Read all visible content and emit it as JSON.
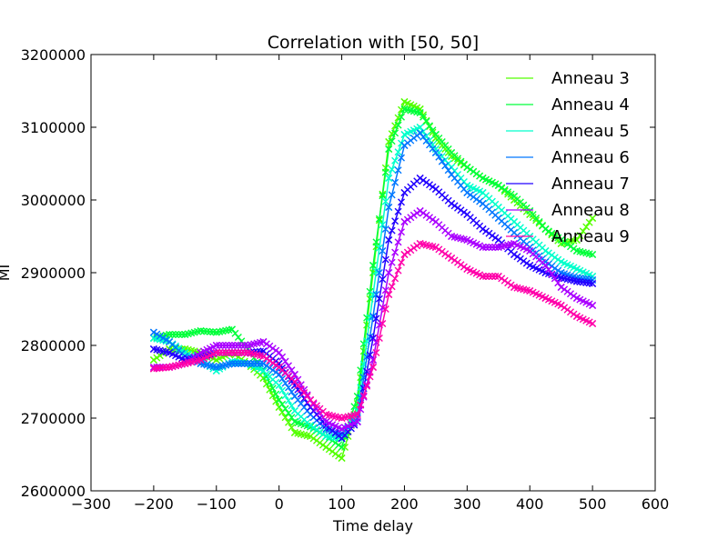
{
  "chart_data": {
    "type": "line",
    "title": "Correlation with [50, 50]",
    "xlabel": "Time delay",
    "ylabel": "MI",
    "xlim": [
      -300,
      600
    ],
    "ylim": [
      2600000,
      3200000
    ],
    "x_ticks": [
      -300,
      -200,
      -100,
      0,
      100,
      200,
      300,
      400,
      500,
      600
    ],
    "y_ticks": [
      2600000,
      2700000,
      2800000,
      2900000,
      3000000,
      3100000,
      3200000
    ],
    "x_tick_labels": [
      "−300",
      "−200",
      "−100",
      "0",
      "100",
      "200",
      "300",
      "400",
      "500",
      "600"
    ],
    "y_tick_labels": [
      "2600000",
      "2700000",
      "2800000",
      "2900000",
      "3000000",
      "3100000",
      "3200000"
    ],
    "marker": "x",
    "grid": false,
    "legend_position": "top-right",
    "x": [
      -200,
      -175,
      -150,
      -125,
      -100,
      -75,
      -50,
      -25,
      0,
      25,
      50,
      75,
      100,
      125,
      150,
      175,
      200,
      225,
      250,
      275,
      300,
      325,
      350,
      375,
      400,
      425,
      450,
      475,
      500
    ],
    "series": [
      {
        "name": "Anneau 3",
        "color": "#55ff00",
        "values": [
          2780000,
          2795000,
          2795000,
          2790000,
          2780000,
          2790000,
          2775000,
          2755000,
          2715000,
          2680000,
          2675000,
          2660000,
          2645000,
          2720000,
          2900000,
          3080000,
          3135000,
          3125000,
          3085000,
          3060000,
          3045000,
          3030000,
          3020000,
          3000000,
          2980000,
          2960000,
          2940000,
          2945000,
          2975000
        ]
      },
      {
        "name": "Anneau 4",
        "color": "#00ff3a",
        "values": [
          2810000,
          2815000,
          2815000,
          2820000,
          2818000,
          2822000,
          2795000,
          2765000,
          2725000,
          2695000,
          2688000,
          2675000,
          2660000,
          2730000,
          2910000,
          3070000,
          3125000,
          3120000,
          3090000,
          3065000,
          3045000,
          3030000,
          3020000,
          3005000,
          2985000,
          2960000,
          2945000,
          2930000,
          2925000
        ]
      },
      {
        "name": "Anneau 5",
        "color": "#00ffcc",
        "values": [
          2810000,
          2805000,
          2790000,
          2780000,
          2765000,
          2778000,
          2775000,
          2765000,
          2745000,
          2710000,
          2690000,
          2675000,
          2672000,
          2710000,
          2870000,
          3030000,
          3090000,
          3100000,
          3070000,
          3045000,
          3020000,
          3010000,
          2990000,
          2970000,
          2950000,
          2930000,
          2915000,
          2905000,
          2895000
        ]
      },
      {
        "name": "Anneau 6",
        "color": "#0077ff",
        "values": [
          2818000,
          2805000,
          2785000,
          2775000,
          2770000,
          2775000,
          2775000,
          2775000,
          2760000,
          2730000,
          2705000,
          2685000,
          2678000,
          2700000,
          2840000,
          2990000,
          3075000,
          3092000,
          3065000,
          3035000,
          3010000,
          2995000,
          2975000,
          2955000,
          2935000,
          2915000,
          2900000,
          2893000,
          2890000
        ]
      },
      {
        "name": "Anneau 7",
        "color": "#2200ff",
        "values": [
          2795000,
          2790000,
          2780000,
          2785000,
          2790000,
          2790000,
          2790000,
          2792000,
          2775000,
          2745000,
          2715000,
          2690000,
          2672000,
          2695000,
          2810000,
          2945000,
          3010000,
          3030000,
          3015000,
          2995000,
          2980000,
          2960000,
          2945000,
          2925000,
          2910000,
          2900000,
          2893000,
          2888000,
          2885000
        ]
      },
      {
        "name": "Anneau 8",
        "color": "#aa00ff",
        "values": [
          2770000,
          2770000,
          2775000,
          2790000,
          2800000,
          2800000,
          2800000,
          2805000,
          2790000,
          2760000,
          2725000,
          2695000,
          2685000,
          2695000,
          2780000,
          2900000,
          2970000,
          2985000,
          2970000,
          2950000,
          2945000,
          2935000,
          2935000,
          2940000,
          2930000,
          2910000,
          2880000,
          2865000,
          2855000
        ]
      },
      {
        "name": "Anneau 9",
        "color": "#ff00aa",
        "values": [
          2768000,
          2770000,
          2775000,
          2780000,
          2790000,
          2790000,
          2790000,
          2785000,
          2770000,
          2750000,
          2725000,
          2705000,
          2700000,
          2705000,
          2770000,
          2870000,
          2925000,
          2940000,
          2935000,
          2920000,
          2905000,
          2895000,
          2895000,
          2880000,
          2875000,
          2865000,
          2855000,
          2840000,
          2830000
        ]
      }
    ]
  }
}
